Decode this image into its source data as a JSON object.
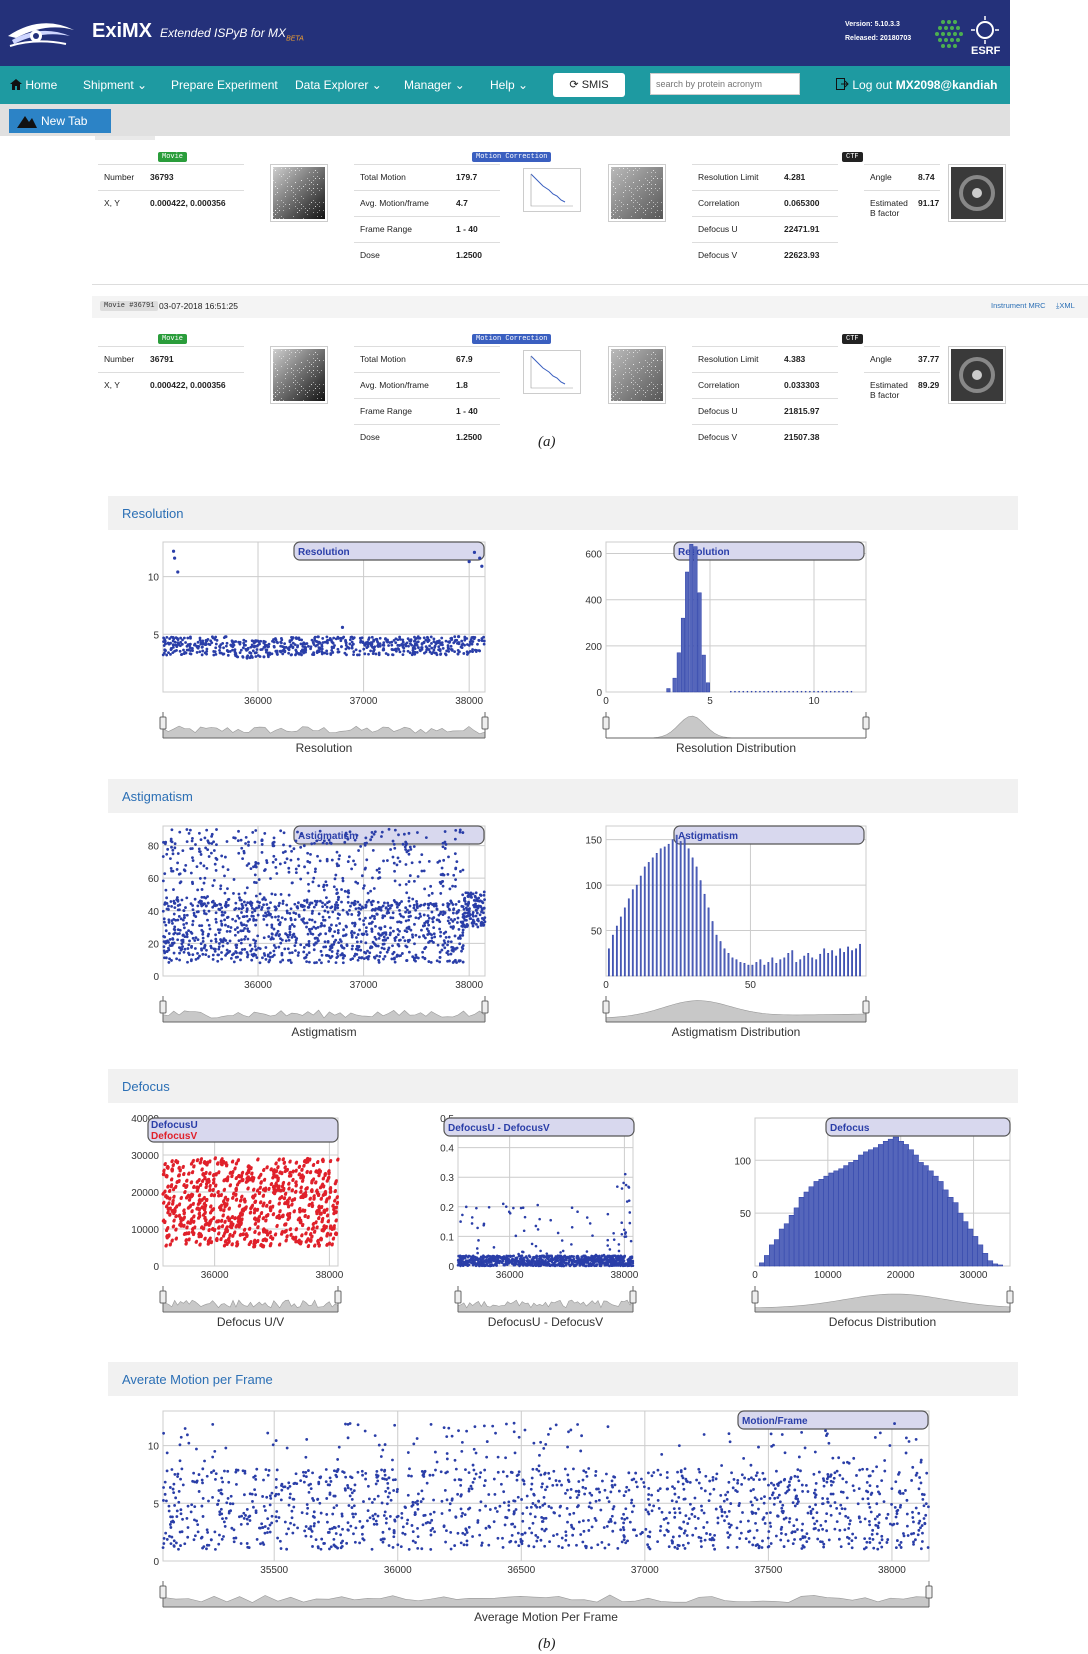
{
  "header": {
    "brand": "ExiMX",
    "tagline": "Extended ISPyB for MX",
    "tagline_sub": "BETA",
    "version": "Version: 5.10.3.3",
    "released": "Released: 20180703",
    "esrf_label": "ESRF"
  },
  "nav": {
    "home": "Home",
    "shipment": "Shipment",
    "prepare": "Prepare Experiment",
    "explorer": "Data Explorer",
    "manager": "Manager",
    "help": "Help",
    "smis": "SMIS",
    "search_placeholder": "search by protein acronym",
    "logout": "Log out",
    "user": "MX2098@kandiah"
  },
  "tabs": {
    "new_tab": "New Tab"
  },
  "panel_a": {
    "movie_badge": "Movie",
    "motion_badge": "Motion Correction",
    "ctf_badge": "CTF",
    "labels": {
      "number": "Number",
      "xy": "X, Y",
      "total_motion": "Total Motion",
      "avg_motion": "Avg. Motion/frame",
      "frame_range": "Frame Range",
      "dose": "Dose",
      "res_limit": "Resolution Limit",
      "correlation": "Correlation",
      "defocus_u": "Defocus U",
      "defocus_v": "Defocus V",
      "angle": "Angle",
      "est_b": "Estimated",
      "est_b2": "B factor"
    },
    "movies": [
      {
        "number": "36793",
        "xy": "0.000422, 0.000356",
        "total_motion": "179.7",
        "avg_motion": "4.7",
        "frame_range": "1 - 40",
        "dose": "1.2500",
        "res_limit": "4.281",
        "correlation": "0.065300",
        "defocus_u": "22471.91",
        "defocus_v": "22623.93",
        "angle": "8.74",
        "bfactor": "91.17"
      },
      {
        "tag": "Movie #36791",
        "date": "03-07-2018 16:51:25",
        "number": "36791",
        "xy": "0.000422, 0.000356",
        "total_motion": "67.9",
        "avg_motion": "1.8",
        "frame_range": "1 - 40",
        "dose": "1.2500",
        "res_limit": "4.383",
        "correlation": "0.033303",
        "defocus_u": "21815.97",
        "defocus_v": "21507.38",
        "angle": "37.77",
        "bfactor": "89.29"
      }
    ],
    "links": "Instrument MRC",
    "xml": "XML",
    "caption": "(a)"
  },
  "sections": {
    "resolution": "Resolution",
    "astigmatism": "Astigmatism",
    "defocus": "Defocus",
    "motion": "Averate Motion per Frame"
  },
  "caption_b": "(b)",
  "chart_data": [
    {
      "type": "scatter",
      "legend": "Resolution",
      "xlabel": "Resolution",
      "xlim": [
        35100,
        38150
      ],
      "ylim": [
        0,
        13
      ],
      "xticks": [
        "36000",
        "37000",
        "38000"
      ],
      "yticks": [
        "5",
        "10"
      ],
      "baseline": 4,
      "spread": 0.5
    },
    {
      "type": "bar",
      "legend": "Resolution",
      "xlabel": "Resolution Distribution",
      "xlim": [
        0,
        12.5
      ],
      "ylim": [
        0,
        650
      ],
      "xticks": [
        "0",
        "5",
        "10"
      ],
      "yticks": [
        "0",
        "200",
        "400",
        "600"
      ],
      "x": [
        3.0,
        3.3,
        3.5,
        3.7,
        3.9,
        4.1,
        4.3,
        4.5,
        4.7,
        4.9
      ],
      "values": [
        15,
        60,
        170,
        320,
        520,
        640,
        630,
        430,
        160,
        40
      ]
    },
    {
      "type": "scatter",
      "legend": "Astigmatism",
      "xlabel": "Astigmatism",
      "xlim": [
        35100,
        38150
      ],
      "ylim": [
        0,
        92
      ],
      "xticks": [
        "36000",
        "37000",
        "38000"
      ],
      "yticks": [
        "0",
        "20",
        "40",
        "60",
        "80"
      ]
    },
    {
      "type": "bar",
      "legend": "Astigmatism",
      "xlabel": "Astigmatism Distribution",
      "xlim": [
        0,
        90
      ],
      "ylim": [
        0,
        165
      ],
      "xticks": [
        "0",
        "50"
      ],
      "yticks": [
        "50",
        "100",
        "150"
      ],
      "values": [
        30,
        45,
        55,
        65,
        75,
        85,
        95,
        100,
        110,
        120,
        125,
        130,
        135,
        140,
        142,
        145,
        150,
        155,
        148,
        152,
        140,
        130,
        120,
        105,
        90,
        75,
        60,
        45,
        38,
        30,
        25,
        20,
        18,
        15,
        14,
        12,
        12,
        15,
        18,
        12,
        15,
        20,
        14,
        18,
        20,
        25,
        28,
        15,
        18,
        22,
        25,
        20,
        18,
        24,
        30,
        25,
        28,
        22,
        30,
        26,
        32,
        28,
        30,
        35
      ]
    },
    {
      "type": "scatter",
      "legend": [
        "DefocusU",
        "DefocusV"
      ],
      "xlabel": "Defocus U/V",
      "xlim": [
        35100,
        38150
      ],
      "ylim": [
        0,
        40000
      ],
      "xticks": [
        "36000",
        "38000"
      ],
      "yticks": [
        "0",
        "10000",
        "20000",
        "30000",
        "40000"
      ]
    },
    {
      "type": "scatter",
      "legend": "DefocusU - DefocusV",
      "xlabel": "DefocusU - DefocusV",
      "xlim": [
        35100,
        38150
      ],
      "ylim": [
        0,
        0.5
      ],
      "xticks": [
        "36000",
        "38000"
      ],
      "yticks": [
        "0",
        "0.1",
        "0.2",
        "0.3",
        "0.4",
        "0.5"
      ]
    },
    {
      "type": "bar",
      "legend": "Defocus",
      "xlabel": "Defocus Distribution",
      "xlim": [
        0,
        35000
      ],
      "ylim": [
        0,
        140
      ],
      "xticks": [
        "0",
        "10000",
        "20000",
        "30000"
      ],
      "yticks": [
        "50",
        "100"
      ],
      "values": [
        0,
        3,
        10,
        20,
        25,
        35,
        40,
        48,
        55,
        65,
        70,
        75,
        80,
        82,
        85,
        88,
        90,
        92,
        95,
        98,
        100,
        105,
        108,
        110,
        112,
        115,
        118,
        120,
        122,
        118,
        115,
        110,
        105,
        98,
        95,
        90,
        85,
        80,
        72,
        65,
        60,
        50,
        42,
        35,
        28,
        20,
        12,
        5,
        2,
        1,
        0
      ]
    },
    {
      "type": "scatter",
      "legend": "Motion/Frame",
      "xlabel": "Average Motion Per Frame",
      "xlim": [
        35050,
        38150
      ],
      "ylim": [
        0,
        13
      ],
      "xticks": [
        "35500",
        "36000",
        "36500",
        "37000",
        "37500",
        "38000"
      ],
      "yticks": [
        "0",
        "5",
        "10"
      ]
    }
  ]
}
